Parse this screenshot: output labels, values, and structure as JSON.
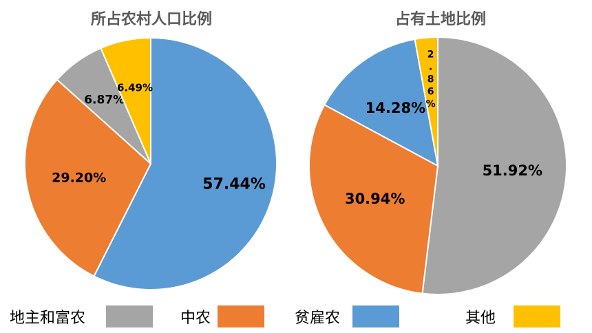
{
  "colors": {
    "landlord": "#A5A5A5",
    "middle": "#ED7D31",
    "poor": "#5B9BD5",
    "other": "#FFC000"
  },
  "legend": [
    {
      "label": "地主和富农",
      "color": "#A5A5A5"
    },
    {
      "label": "中农",
      "color": "#ED7D31"
    },
    {
      "label": "贫雇农",
      "color": "#5B9BD5"
    },
    {
      "label": "其他",
      "color": "#FFC000"
    }
  ],
  "chart_data": [
    {
      "type": "pie",
      "title": "所占农村人口比例",
      "slices": [
        {
          "category": "贫雇农",
          "value": 57.44,
          "label": "57.44%"
        },
        {
          "category": "中农",
          "value": 29.2,
          "label": "29.20%"
        },
        {
          "category": "地主和富农",
          "value": 6.87,
          "label": "6.87%"
        },
        {
          "category": "其他",
          "value": 6.49,
          "label": "6.49%"
        }
      ]
    },
    {
      "type": "pie",
      "title": "占有土地比例",
      "slices": [
        {
          "category": "地主和富农",
          "value": 51.92,
          "label": "51.92%"
        },
        {
          "category": "中农",
          "value": 30.94,
          "label": "30.94%"
        },
        {
          "category": "贫雇农",
          "value": 14.28,
          "label": "14.28%"
        },
        {
          "category": "其他",
          "value": 2.86,
          "label": "2.86%"
        }
      ]
    }
  ]
}
